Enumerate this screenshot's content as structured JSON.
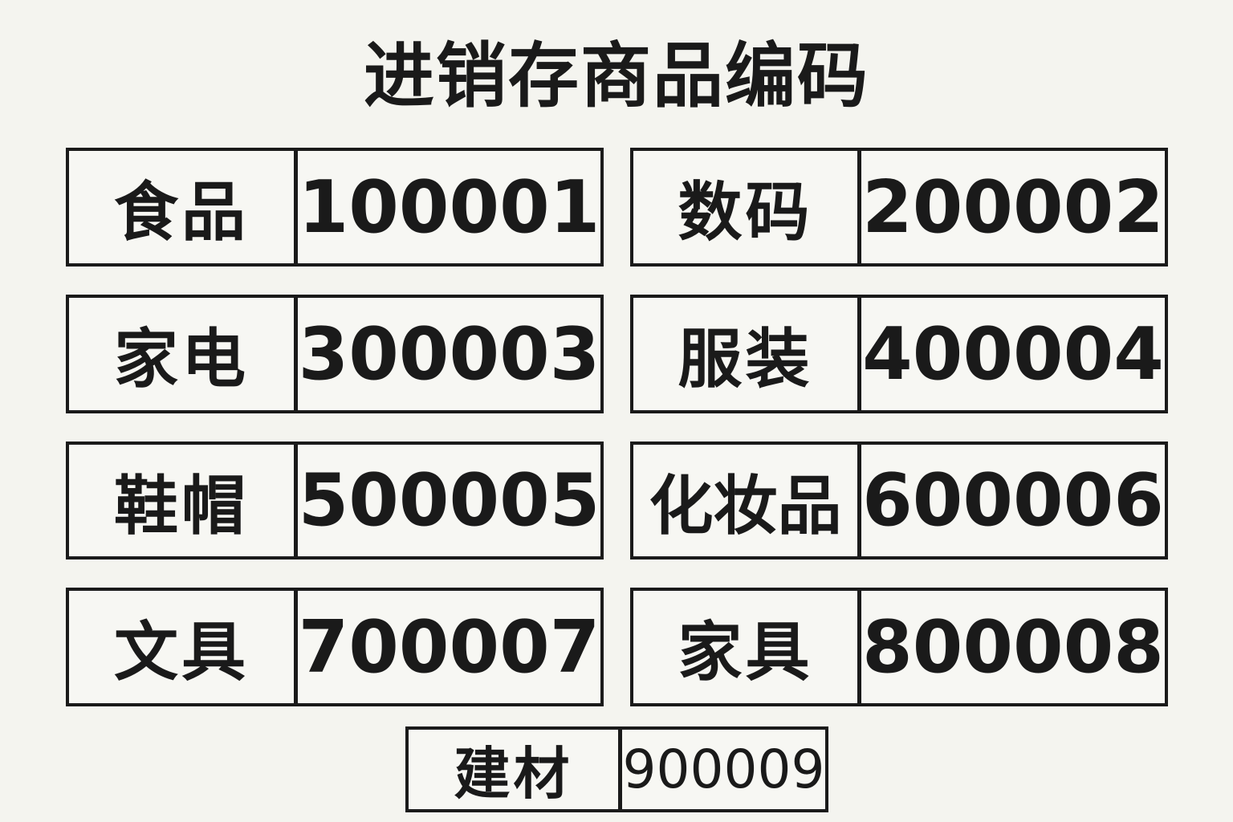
{
  "title": "进销存商品编码",
  "items": [
    {
      "name": "食品",
      "code": "100001"
    },
    {
      "name": "数码",
      "code": "200002"
    },
    {
      "name": "家电",
      "code": "300003"
    },
    {
      "name": "服装",
      "code": "400004"
    },
    {
      "name": "鞋帽",
      "code": "500005"
    },
    {
      "name": "化妆品",
      "code": "600006"
    },
    {
      "name": "文具",
      "code": "700007"
    },
    {
      "name": "家具",
      "code": "800008"
    },
    {
      "name": "建材",
      "code": "900009"
    }
  ]
}
